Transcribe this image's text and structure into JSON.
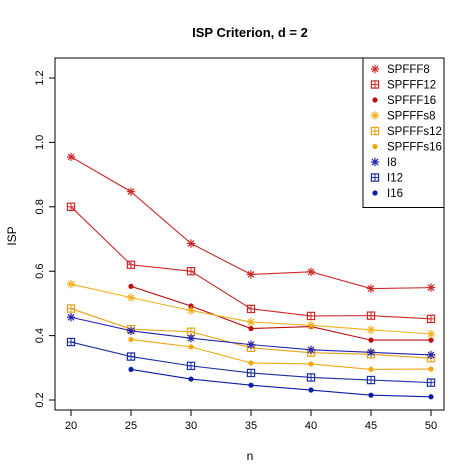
{
  "chart_data": {
    "type": "line",
    "title": "ISP Criterion, d = 2",
    "xlabel": "n",
    "ylabel": "ISP",
    "x": [
      20,
      25,
      30,
      35,
      40,
      45,
      50
    ],
    "xlim": [
      20,
      50
    ],
    "ylim": [
      0.2,
      1.2
    ],
    "xticks": [
      20,
      25,
      30,
      35,
      40,
      45,
      50
    ],
    "yticks": [
      0.2,
      0.4,
      0.6,
      0.8,
      1.0,
      1.2
    ],
    "ytick_labels": [
      "0.2",
      "0.4",
      "0.6",
      "0.8",
      "1.0",
      "1.2"
    ],
    "grid": false,
    "legend_position": "top-right",
    "series": [
      {
        "name": "SPFFF8",
        "color": "#cc2a2a",
        "marker": "asterisk",
        "values": [
          0.955,
          0.847,
          0.686,
          0.59,
          0.598,
          0.546,
          0.549
        ]
      },
      {
        "name": "SPFFF12",
        "color": "#cc2a2a",
        "marker": "square-plus",
        "values": [
          0.8,
          0.62,
          0.6,
          0.483,
          0.461,
          0.462,
          0.452
        ]
      },
      {
        "name": "SPFFF16",
        "color": "#bb0f0f",
        "marker": "dot",
        "values": [
          null,
          0.553,
          0.492,
          0.422,
          0.428,
          0.386,
          0.386
        ]
      },
      {
        "name": "SPFFFs8",
        "color": "#f0b21c",
        "marker": "asterisk",
        "values": [
          0.56,
          0.518,
          0.478,
          0.442,
          0.432,
          0.418,
          0.405
        ]
      },
      {
        "name": "SPFFFs12",
        "color": "#e5a21a",
        "marker": "square-plus",
        "values": [
          0.484,
          0.42,
          0.412,
          0.362,
          0.347,
          0.342,
          0.33
        ]
      },
      {
        "name": "SPFFFs16",
        "color": "#f0a80e",
        "marker": "dot",
        "values": [
          null,
          0.388,
          0.365,
          0.315,
          0.312,
          0.295,
          0.296
        ]
      },
      {
        "name": "I8",
        "color": "#2323b0",
        "marker": "asterisk",
        "values": [
          0.457,
          0.415,
          0.392,
          0.372,
          0.356,
          0.348,
          0.34
        ]
      },
      {
        "name": "I12",
        "color": "#1c2ea0",
        "marker": "square-plus",
        "values": [
          0.38,
          0.335,
          0.306,
          0.284,
          0.27,
          0.262,
          0.254
        ]
      },
      {
        "name": "I16",
        "color": "#0a1eaa",
        "marker": "dot",
        "values": [
          null,
          0.295,
          0.265,
          0.246,
          0.231,
          0.215,
          0.21
        ]
      }
    ]
  }
}
